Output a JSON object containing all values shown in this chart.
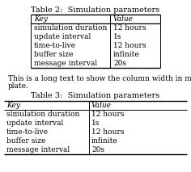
{
  "title1": "Table 2:  Simulation parameters",
  "title2": "Table 3:  Simulation parameters",
  "middle_text1": "This is a long text to show the column width in my tem-",
  "middle_text2": "plate.",
  "headers": [
    "Key",
    "Value"
  ],
  "rows": [
    [
      "simulation duration",
      "12 hours"
    ],
    [
      "update interval",
      "1s"
    ],
    [
      "time-to-live",
      "12 hours"
    ],
    [
      "buffer size",
      "infinite"
    ],
    [
      "message interval",
      "20s"
    ]
  ],
  "bg_color": "#ffffff",
  "text_color": "#000000",
  "line_color": "#000000",
  "font_size": 6.5,
  "title_font_size": 7.0,
  "fig_width": 2.36,
  "fig_height": 2.13,
  "dpi": 100
}
